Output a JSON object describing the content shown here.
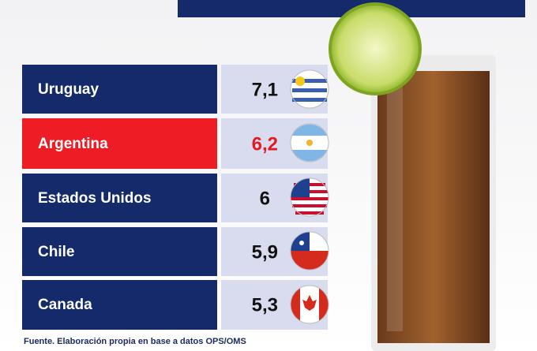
{
  "rows": [
    {
      "country": "Uruguay",
      "value": "7,1"
    },
    {
      "country": "Argentina",
      "value": "6,2"
    },
    {
      "country": "Estados Unidos",
      "value": "6"
    },
    {
      "country": "Chile",
      "value": "5,9"
    },
    {
      "country": "Canada",
      "value": "5,3"
    }
  ],
  "source": "Fuente. Elaboración propia en base a datos OPS/OMS"
}
